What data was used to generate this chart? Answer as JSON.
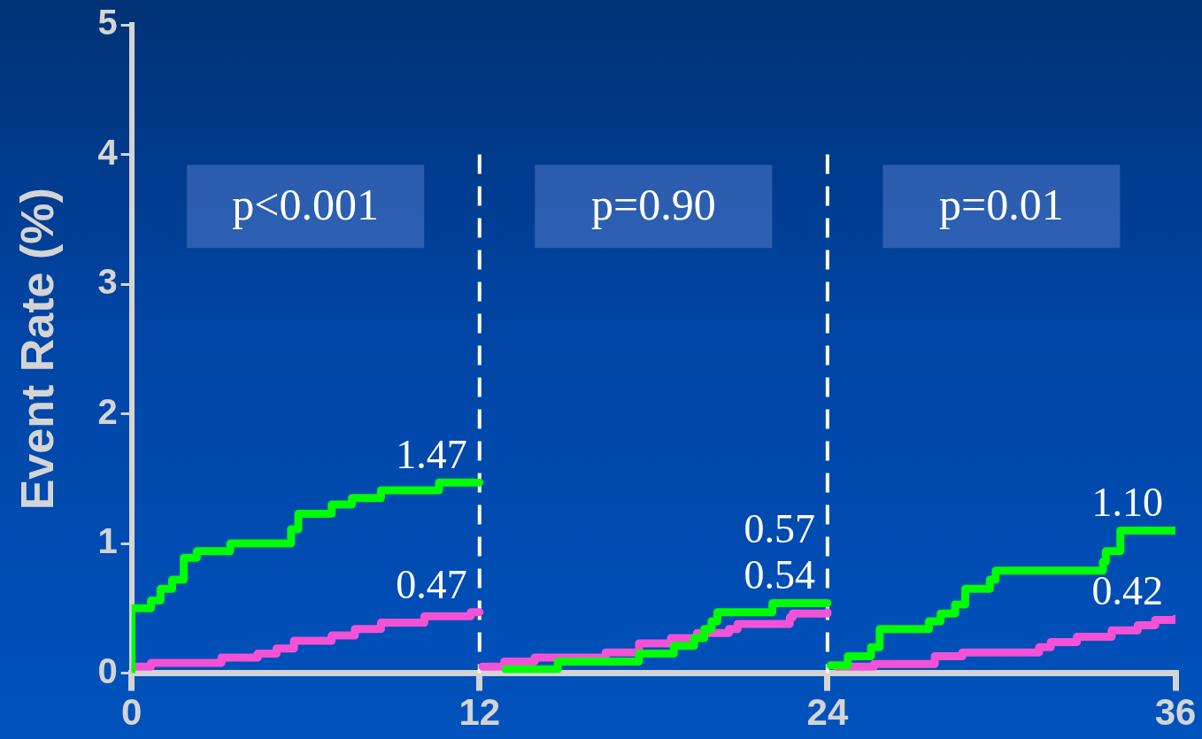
{
  "chart_data": {
    "type": "step",
    "ylabel": "Event Rate (%)",
    "xlim": [
      0,
      36
    ],
    "xticks": [
      0,
      12,
      24,
      36
    ],
    "ylim": [
      0,
      5
    ],
    "yticks": [
      0,
      1,
      2,
      3,
      4,
      5
    ],
    "grid": false,
    "legend": false,
    "marker": "none",
    "line_style": "solid",
    "series": [
      {
        "color": "#00ff00",
        "x": [
          0,
          0,
          0.67,
          1.0,
          1.4,
          1.8,
          2.25,
          3.4,
          5.5,
          5.75,
          6.9,
          7.6,
          8.6,
          10.6,
          12,
          12.5,
          12.9,
          14.7,
          17.5,
          18.7,
          19.4,
          19.75,
          20.0,
          20.2,
          22.1,
          24,
          24.05,
          24.1,
          24.7,
          25.5,
          25.8,
          27.5,
          27.9,
          28.4,
          28.75,
          29.6,
          29.8,
          33.5,
          33.6,
          34.1,
          36
        ],
        "values": [
          0,
          0.5,
          0.56,
          0.65,
          0.72,
          0.89,
          0.94,
          1.0,
          1.11,
          1.23,
          1.3,
          1.35,
          1.41,
          1.47,
          1.47,
          null,
          0.03,
          0.09,
          0.15,
          0.21,
          0.27,
          0.34,
          0.4,
          0.47,
          0.54,
          0.54,
          null,
          0.06,
          0.13,
          0.2,
          0.34,
          0.4,
          0.46,
          0.53,
          0.65,
          0.72,
          0.79,
          0.86,
          0.94,
          1.1,
          1.1
        ]
      },
      {
        "color": "#f452d6",
        "x": [
          0,
          0.67,
          3.1,
          4.35,
          5.0,
          5.6,
          6.9,
          7.7,
          8.6,
          10.1,
          11.7,
          12,
          12.05,
          12.1,
          12.85,
          13.9,
          16.35,
          17.5,
          18.6,
          19.5,
          20.6,
          20.9,
          22.7,
          22.8,
          24,
          24.2,
          24.3,
          25.6,
          27.7,
          28.65,
          31.3,
          31.7,
          32.6,
          33.8,
          34.7,
          35.3,
          36
        ],
        "values": [
          0.05,
          0.08,
          0.12,
          0.15,
          0.19,
          0.25,
          0.29,
          0.34,
          0.39,
          0.44,
          0.47,
          0.47,
          null,
          0.05,
          0.09,
          0.12,
          0.16,
          0.23,
          0.27,
          0.31,
          0.34,
          0.38,
          0.43,
          0.46,
          0.47,
          null,
          0.05,
          0.07,
          0.13,
          0.16,
          0.2,
          0.24,
          0.28,
          0.33,
          0.37,
          0.41,
          0.42
        ]
      }
    ],
    "ref_lines": [
      {
        "axis": "x",
        "value": 12,
        "color": "#ffffff",
        "line_style": "dashed"
      },
      {
        "axis": "x",
        "value": 24,
        "color": "#ffffff",
        "line_style": "dashed"
      }
    ],
    "annotations": [
      "p<0.001",
      "p=0.90",
      "p=0.01",
      {
        "text": "1.47",
        "x": 12,
        "y": 1.47
      },
      {
        "text": "0.47",
        "x": 12,
        "y": 0.47
      },
      {
        "text": "0.57",
        "x": 24,
        "y": 0.57
      },
      {
        "text": "0.54",
        "x": 24,
        "y": 0.54
      },
      {
        "text": "1.10",
        "x": 36,
        "y": 1.1
      },
      {
        "text": "0.42",
        "x": 36,
        "y": 0.42
      }
    ]
  }
}
